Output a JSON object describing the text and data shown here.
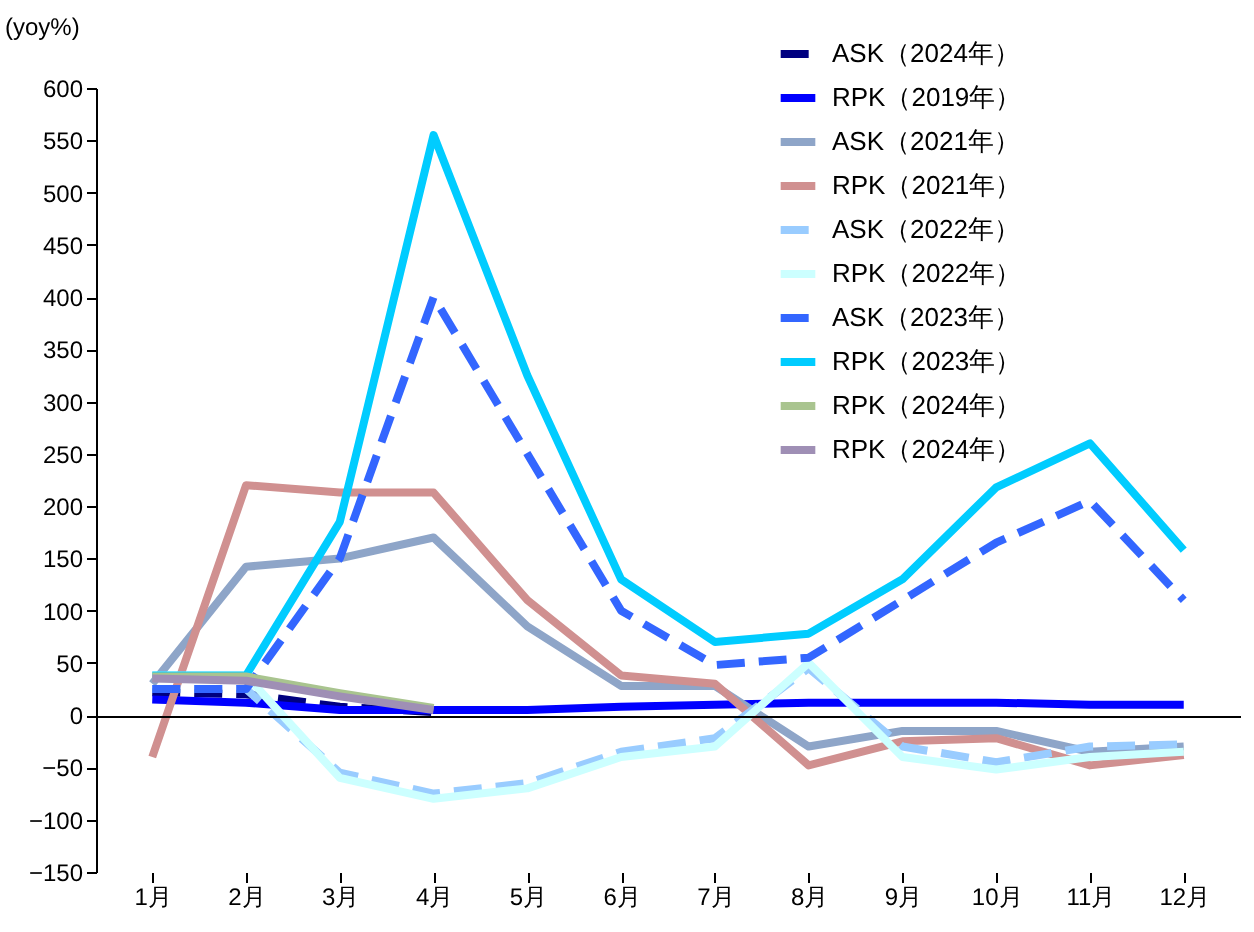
{
  "chart_data": {
    "type": "line",
    "ylabel": "(yoy%)",
    "categories": [
      "1月",
      "2月",
      "3月",
      "4月",
      "5月",
      "6月",
      "7月",
      "8月",
      "9月",
      "10月",
      "11月",
      "12月"
    ],
    "ylim": [
      -150,
      600
    ],
    "yticks": [
      -150,
      -100,
      -50,
      0,
      50,
      100,
      150,
      200,
      250,
      300,
      350,
      400,
      450,
      500,
      550,
      600
    ],
    "legend": "top right",
    "series": [
      {
        "name": "ASK（2024年）",
        "color": "#000080",
        "line_style": "dashed",
        "values": [
          22,
          20,
          8,
          3,
          null,
          null,
          null,
          null,
          null,
          null,
          null,
          null
        ]
      },
      {
        "name": "RPK（2019年）",
        "color": "#0000ff",
        "line_style": "solid",
        "values": [
          15,
          12,
          5,
          5,
          5,
          8,
          10,
          12,
          12,
          12,
          10,
          10
        ]
      },
      {
        "name": "ASK（2021年）",
        "color": "#8ea5c8",
        "line_style": "solid",
        "values": [
          30,
          142,
          150,
          170,
          85,
          28,
          28,
          -30,
          -15,
          -15,
          -35,
          -30
        ]
      },
      {
        "name": "RPK（2021年）",
        "color": "#d09090",
        "line_style": "solid",
        "values": [
          -40,
          220,
          213,
          213,
          110,
          38,
          30,
          -48,
          -25,
          -22,
          -48,
          -38
        ]
      },
      {
        "name": "ASK（2022年）",
        "color": "#99ccff",
        "line_style": "dashed",
        "values": [
          25,
          25,
          -55,
          -75,
          -65,
          -35,
          -22,
          45,
          -30,
          -45,
          -30,
          -28
        ]
      },
      {
        "name": "RPK（2022年）",
        "color": "#ccffff",
        "line_style": "solid",
        "values": [
          38,
          38,
          -60,
          -80,
          -70,
          -40,
          -30,
          50,
          -40,
          -52,
          -40,
          -35
        ]
      },
      {
        "name": "ASK（2023年）",
        "color": "#3366ff",
        "line_style": "dashed",
        "values": [
          25,
          25,
          150,
          400,
          250,
          100,
          48,
          55,
          110,
          165,
          205,
          110
        ]
      },
      {
        "name": "RPK（2023年）",
        "color": "#00ccff",
        "line_style": "solid",
        "values": [
          38,
          38,
          185,
          555,
          325,
          130,
          70,
          78,
          130,
          218,
          260,
          158
        ]
      },
      {
        "name": "RPK（2024年）",
        "color": "#a9c48f",
        "line_style": "solid",
        "values": [
          37,
          37,
          21,
          7,
          null,
          null,
          null,
          null,
          null,
          null,
          null,
          null
        ]
      },
      {
        "name": "RPK（2024年）",
        "color": "#9f8fb5",
        "line_style": "solid",
        "values": [
          35,
          33,
          18,
          5,
          null,
          null,
          null,
          null,
          null,
          null,
          null,
          null
        ]
      }
    ]
  }
}
